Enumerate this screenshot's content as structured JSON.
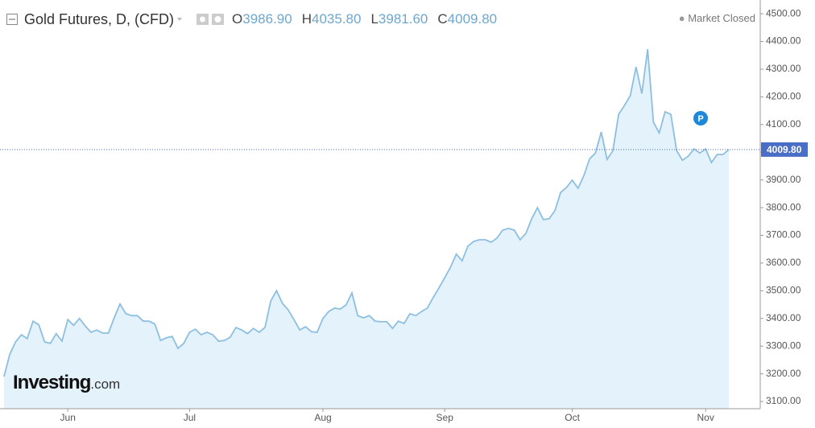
{
  "header": {
    "ohlc": [
      {
        "key": "O",
        "value": "3986.90"
      },
      {
        "key": "H",
        "value": "4035.80"
      },
      {
        "key": "L",
        "value": "3981.60"
      },
      {
        "key": "C",
        "value": "4009.80"
      }
    ],
    "status": "Market Closed"
  },
  "logo": {
    "main": "Investing",
    "suffix": ".com"
  },
  "chart_data": {
    "type": "area",
    "title": "Gold Futures, D, (CFD)",
    "categories": [
      null,
      null,
      null,
      null,
      null,
      null,
      null,
      null,
      null,
      null,
      null,
      "Jun",
      null,
      null,
      null,
      null,
      null,
      null,
      null,
      null,
      null,
      null,
      null,
      null,
      null,
      null,
      null,
      null,
      null,
      null,
      null,
      null,
      "Jul",
      null,
      null,
      null,
      null,
      null,
      null,
      null,
      null,
      null,
      null,
      null,
      null,
      null,
      null,
      null,
      null,
      null,
      null,
      null,
      null,
      null,
      null,
      "Aug",
      null,
      null,
      null,
      null,
      null,
      null,
      null,
      null,
      null,
      null,
      null,
      null,
      null,
      null,
      null,
      null,
      null,
      null,
      null,
      null,
      "Sep",
      null,
      null,
      null,
      null,
      null,
      null,
      null,
      null,
      null,
      null,
      null,
      null,
      null,
      null,
      null,
      null,
      null,
      null,
      null,
      null,
      null,
      "Oct",
      null,
      null,
      null,
      null,
      null,
      null,
      null,
      null,
      null,
      null,
      null,
      null,
      null,
      null,
      null,
      null,
      null,
      null,
      null,
      null,
      null,
      null,
      "Nov",
      null,
      null,
      null,
      null
    ],
    "values": [
      3190,
      3271,
      3315,
      3341,
      3327,
      3390,
      3377,
      3315,
      3310,
      3345,
      3318,
      3396,
      3375,
      3400,
      3373,
      3350,
      3358,
      3347,
      3347,
      3402,
      3452,
      3417,
      3410,
      3410,
      3390,
      3390,
      3380,
      3320,
      3330,
      3335,
      3292,
      3310,
      3350,
      3361,
      3341,
      3350,
      3341,
      3318,
      3320,
      3332,
      3367,
      3358,
      3345,
      3364,
      3350,
      3367,
      3463,
      3500,
      3455,
      3431,
      3396,
      3358,
      3370,
      3352,
      3350,
      3400,
      3425,
      3437,
      3434,
      3449,
      3492,
      3410,
      3402,
      3410,
      3390,
      3388,
      3388,
      3364,
      3390,
      3382,
      3417,
      3410,
      3425,
      3437,
      3475,
      3510,
      3547,
      3585,
      3632,
      3608,
      3661,
      3678,
      3684,
      3684,
      3675,
      3690,
      3719,
      3725,
      3719,
      3684,
      3707,
      3760,
      3800,
      3757,
      3760,
      3789,
      3855,
      3873,
      3899,
      3870,
      3916,
      3977,
      3997,
      4073,
      3974,
      4006,
      4137,
      4169,
      4204,
      4308,
      4212,
      4372,
      4108,
      4070,
      4146,
      4137,
      4006,
      3971,
      3986,
      4012,
      3997,
      4012,
      3963,
      3992,
      3992,
      4009.8
    ],
    "color": "#8dbfe0",
    "fill": "#e4f2fb",
    "ylim": [
      3074,
      4544
    ],
    "yticks": [
      {
        "value": 3100,
        "label": "3100.00"
      },
      {
        "value": 3200,
        "label": "3200.00"
      },
      {
        "value": 3300,
        "label": "3300.00"
      },
      {
        "value": 3400,
        "label": "3400.00"
      },
      {
        "value": 3500,
        "label": "3500.00"
      },
      {
        "value": 3600,
        "label": "3600.00"
      },
      {
        "value": 3700,
        "label": "3700.00"
      },
      {
        "value": 3800,
        "label": "3800.00"
      },
      {
        "value": 3900,
        "label": "3900.00"
      },
      {
        "value": 4000,
        "label": "4000.00"
      },
      {
        "value": 4100,
        "label": "4100.00"
      },
      {
        "value": 4200,
        "label": "4200.00"
      },
      {
        "value": 4300,
        "label": "4300.00"
      },
      {
        "value": 4400,
        "label": "4400.00"
      },
      {
        "value": 4500,
        "label": "4500.00"
      }
    ],
    "last_price": {
      "value": 4009.8,
      "label": "4009.80"
    },
    "last_price_color": "#4a6ec6",
    "badge": "P",
    "badge_color": "#1e88d8",
    "grid": false
  }
}
